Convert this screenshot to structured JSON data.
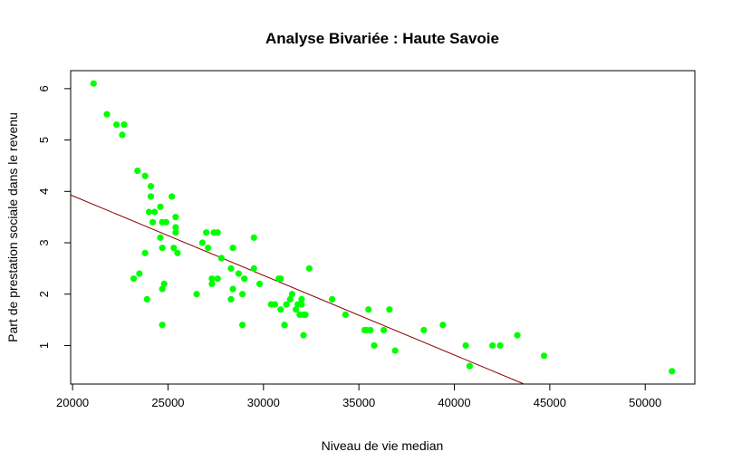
{
  "chart_data": {
    "type": "scatter",
    "title": "Analyse Bivariée : Haute Savoie",
    "xlabel": "Niveau de vie median",
    "ylabel": "Part de prestation sociale dans le revenu",
    "xlim": [
      19900,
      52600
    ],
    "ylim": [
      0.25,
      6.35
    ],
    "xticks": [
      "20000",
      "25000",
      "30000",
      "35000",
      "40000",
      "45000",
      "50000"
    ],
    "yticks": [
      "1",
      "2",
      "3",
      "4",
      "5",
      "6"
    ],
    "grid": false,
    "point_color": "#00ff00",
    "line_color": "#8b0000",
    "regression_line": {
      "x": [
        19900,
        43650
      ],
      "y": [
        3.93,
        0.25
      ]
    },
    "points": [
      [
        21100,
        6.1
      ],
      [
        21800,
        5.5
      ],
      [
        22300,
        5.3
      ],
      [
        22700,
        5.3
      ],
      [
        22600,
        5.1
      ],
      [
        23400,
        4.4
      ],
      [
        23800,
        4.3
      ],
      [
        24100,
        4.1
      ],
      [
        24100,
        3.9
      ],
      [
        24600,
        3.7
      ],
      [
        25200,
        3.9
      ],
      [
        24000,
        3.6
      ],
      [
        24300,
        3.6
      ],
      [
        24700,
        3.4
      ],
      [
        24900,
        3.4
      ],
      [
        24200,
        3.4
      ],
      [
        25400,
        3.5
      ],
      [
        25400,
        3.3
      ],
      [
        25400,
        3.2
      ],
      [
        24600,
        3.1
      ],
      [
        25300,
        2.9
      ],
      [
        25500,
        2.8
      ],
      [
        24700,
        2.9
      ],
      [
        23800,
        2.8
      ],
      [
        23500,
        2.4
      ],
      [
        23200,
        2.3
      ],
      [
        24800,
        2.2
      ],
      [
        24700,
        2.1
      ],
      [
        23900,
        1.9
      ],
      [
        24700,
        1.4
      ],
      [
        26500,
        2.0
      ],
      [
        26800,
        3.0
      ],
      [
        27000,
        3.2
      ],
      [
        27100,
        2.9
      ],
      [
        27400,
        3.2
      ],
      [
        27600,
        3.2
      ],
      [
        27800,
        2.7
      ],
      [
        27300,
        2.3
      ],
      [
        27600,
        2.3
      ],
      [
        27300,
        2.2
      ],
      [
        28400,
        2.9
      ],
      [
        28300,
        2.5
      ],
      [
        28700,
        2.4
      ],
      [
        29000,
        2.3
      ],
      [
        28400,
        2.1
      ],
      [
        28900,
        2.0
      ],
      [
        28300,
        1.9
      ],
      [
        28900,
        1.4
      ],
      [
        29500,
        3.1
      ],
      [
        29500,
        2.5
      ],
      [
        29800,
        2.2
      ],
      [
        30400,
        1.8
      ],
      [
        30600,
        1.8
      ],
      [
        30800,
        2.3
      ],
      [
        30900,
        2.3
      ],
      [
        30900,
        1.7
      ],
      [
        31200,
        1.8
      ],
      [
        31400,
        1.9
      ],
      [
        31500,
        2.0
      ],
      [
        31100,
        1.4
      ],
      [
        31700,
        1.7
      ],
      [
        31800,
        1.8
      ],
      [
        31900,
        1.6
      ],
      [
        32000,
        1.8
      ],
      [
        32000,
        1.9
      ],
      [
        32100,
        1.6
      ],
      [
        32200,
        1.6
      ],
      [
        32100,
        1.2
      ],
      [
        32400,
        2.5
      ],
      [
        33600,
        1.9
      ],
      [
        34300,
        1.6
      ],
      [
        35300,
        1.3
      ],
      [
        35500,
        1.7
      ],
      [
        35400,
        1.3
      ],
      [
        35600,
        1.3
      ],
      [
        35800,
        1.0
      ],
      [
        36300,
        1.3
      ],
      [
        36600,
        1.7
      ],
      [
        36900,
        0.9
      ],
      [
        38400,
        1.3
      ],
      [
        39400,
        1.4
      ],
      [
        40600,
        1.0
      ],
      [
        40800,
        0.6
      ],
      [
        42000,
        1.0
      ],
      [
        42400,
        1.0
      ],
      [
        43300,
        1.2
      ],
      [
        44700,
        0.8
      ],
      [
        51400,
        0.5
      ]
    ]
  }
}
